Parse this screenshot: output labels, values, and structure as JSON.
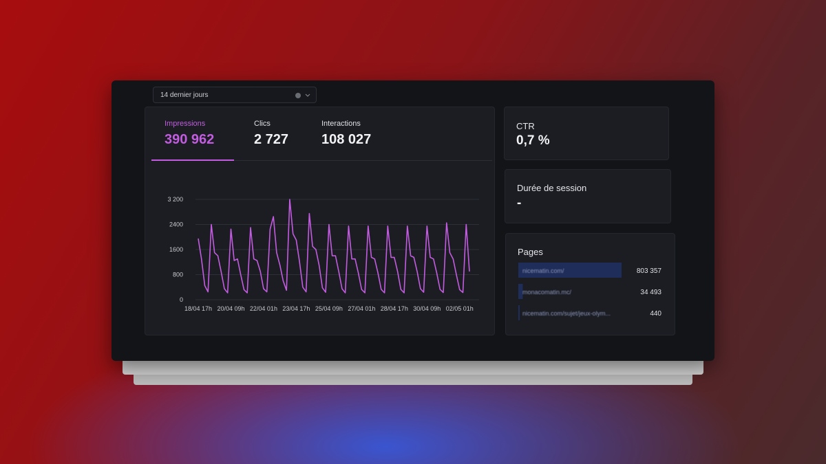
{
  "filter": {
    "label": "14 dernier jours"
  },
  "metrics": [
    {
      "label": "Impressions",
      "value": "390 962"
    },
    {
      "label": "Clics",
      "value": "2 727"
    },
    {
      "label": "Interactions",
      "value": "108 027"
    }
  ],
  "chart": {
    "type": "line",
    "color": "#c35ce0",
    "ylim": [
      0,
      3200
    ],
    "yticks": [
      0,
      800,
      1600,
      2400,
      {
        "value": 3200,
        "label": "3 200"
      }
    ],
    "grid": true,
    "categories": [
      "18/04 17h",
      null,
      null,
      null,
      null,
      null,
      null,
      null,
      null,
      null,
      "20/04 09h",
      null,
      null,
      null,
      null,
      null,
      null,
      null,
      null,
      null,
      "22/04 01h",
      null,
      null,
      null,
      null,
      null,
      null,
      null,
      null,
      null,
      "23/04 17h",
      null,
      null,
      null,
      null,
      null,
      null,
      null,
      null,
      null,
      "25/04 09h",
      null,
      null,
      null,
      null,
      null,
      null,
      null,
      null,
      null,
      "27/04 01h",
      null,
      null,
      null,
      null,
      null,
      null,
      null,
      null,
      null,
      "28/04 17h",
      null,
      null,
      null,
      null,
      null,
      null,
      null,
      null,
      null,
      "30/04 09h",
      null,
      null,
      null,
      null,
      null,
      null,
      null,
      null,
      null,
      "02/05 01h",
      null,
      null,
      null
    ],
    "values": [
      1950,
      1300,
      450,
      250,
      2400,
      1500,
      1400,
      900,
      350,
      220,
      2250,
      1250,
      1300,
      800,
      320,
      220,
      2300,
      1300,
      1250,
      900,
      350,
      250,
      2250,
      2650,
      1500,
      1100,
      600,
      300,
      3200,
      2100,
      1900,
      1200,
      400,
      250,
      2750,
      1700,
      1600,
      1100,
      380,
      240,
      2400,
      1400,
      1400,
      900,
      350,
      220,
      2350,
      1300,
      1300,
      850,
      330,
      220,
      2350,
      1350,
      1300,
      850,
      330,
      220,
      2350,
      1350,
      1350,
      900,
      330,
      220,
      2350,
      1400,
      1350,
      900,
      350,
      240,
      2350,
      1350,
      1300,
      850,
      330,
      230,
      2450,
      1500,
      1300,
      800,
      320,
      230,
      2400,
      900
    ]
  },
  "ctr": {
    "label": "CTR",
    "value": "0,7 %"
  },
  "session": {
    "label": "Durée de session",
    "value": "-"
  },
  "pages": {
    "title": "Pages",
    "names": [
      "nicematin.com/",
      "monacomatin.mc/",
      "nicematin.com/sujet/jeux-olym..."
    ],
    "values": [
      803357,
      34493,
      440
    ],
    "value_labels": [
      "803 357",
      "34 493",
      "440"
    ]
  }
}
